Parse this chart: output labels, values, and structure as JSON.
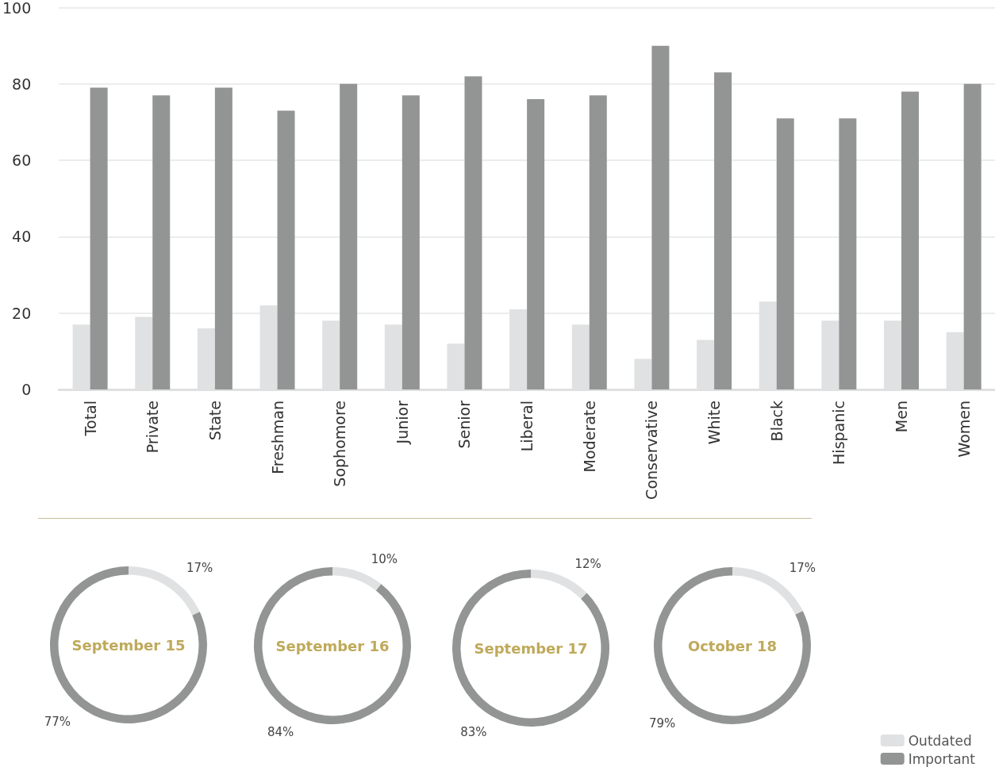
{
  "chart_data": [
    {
      "type": "bar",
      "categories": [
        "Total",
        "Private",
        "State",
        "Freshman",
        "Sophomore",
        "Junior",
        "Senior",
        "Liberal",
        "Moderate",
        "Conservative",
        "White",
        "Black",
        "Hispanic",
        "Men",
        "Women"
      ],
      "series": [
        {
          "name": "Outdated",
          "color": "#e0e1e2",
          "values": [
            17,
            19,
            16,
            22,
            18,
            17,
            12,
            21,
            17,
            8,
            13,
            23,
            18,
            18,
            15
          ]
        },
        {
          "name": "Important",
          "color": "#939494",
          "values": [
            79,
            77,
            79,
            73,
            80,
            77,
            82,
            76,
            77,
            90,
            83,
            71,
            71,
            78,
            80
          ]
        }
      ],
      "ylim": [
        0,
        100
      ],
      "yticks": [
        0,
        20,
        40,
        60,
        80,
        100
      ],
      "grid": "y",
      "legend": "bottom right"
    },
    {
      "type": "donut",
      "title": "September 15",
      "categories": [
        null,
        null
      ],
      "values": [
        17,
        77
      ],
      "colors": [
        "#e0e1e2",
        "#939494"
      ],
      "value_labels": [
        "17%",
        "77%"
      ]
    },
    {
      "type": "donut",
      "title": "September 16",
      "categories": [
        null,
        null
      ],
      "values": [
        10,
        84
      ],
      "colors": [
        "#e0e1e2",
        "#939494"
      ],
      "value_labels": [
        "10%",
        "84%"
      ]
    },
    {
      "type": "donut",
      "title": "September 17",
      "categories": [
        null,
        null
      ],
      "values": [
        12,
        83
      ],
      "colors": [
        "#e0e1e2",
        "#939494"
      ],
      "value_labels": [
        "12%",
        "83%"
      ]
    },
    {
      "type": "donut",
      "title": "October 18",
      "categories": [
        null,
        null
      ],
      "values": [
        17,
        79
      ],
      "colors": [
        "#e0e1e2",
        "#939494"
      ],
      "value_labels": [
        "17%",
        "79%"
      ]
    }
  ]
}
